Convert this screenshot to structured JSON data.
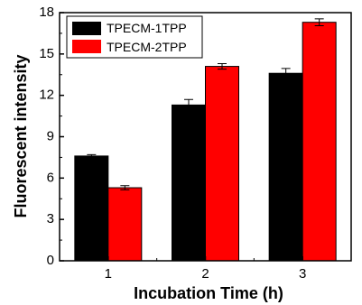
{
  "chart_data": {
    "type": "bar",
    "title": "",
    "xlabel": "Incubation Time (h)",
    "ylabel": "Fluorescent intensity",
    "categories": [
      "1",
      "2",
      "3"
    ],
    "ylim": [
      0,
      18
    ],
    "yticks": [
      "0",
      "3",
      "6",
      "9",
      "12",
      "15",
      "18"
    ],
    "legend_position": "top-left",
    "grid": false,
    "series": [
      {
        "name": "TPECM-1TPP",
        "color": "#000000",
        "values": [
          7.6,
          11.3,
          13.6
        ],
        "errors": [
          0.1,
          0.4,
          0.35
        ]
      },
      {
        "name": "TPECM-2TPP",
        "color": "#ff0000",
        "values": [
          5.3,
          14.1,
          17.3
        ],
        "errors": [
          0.15,
          0.2,
          0.25
        ]
      }
    ]
  }
}
